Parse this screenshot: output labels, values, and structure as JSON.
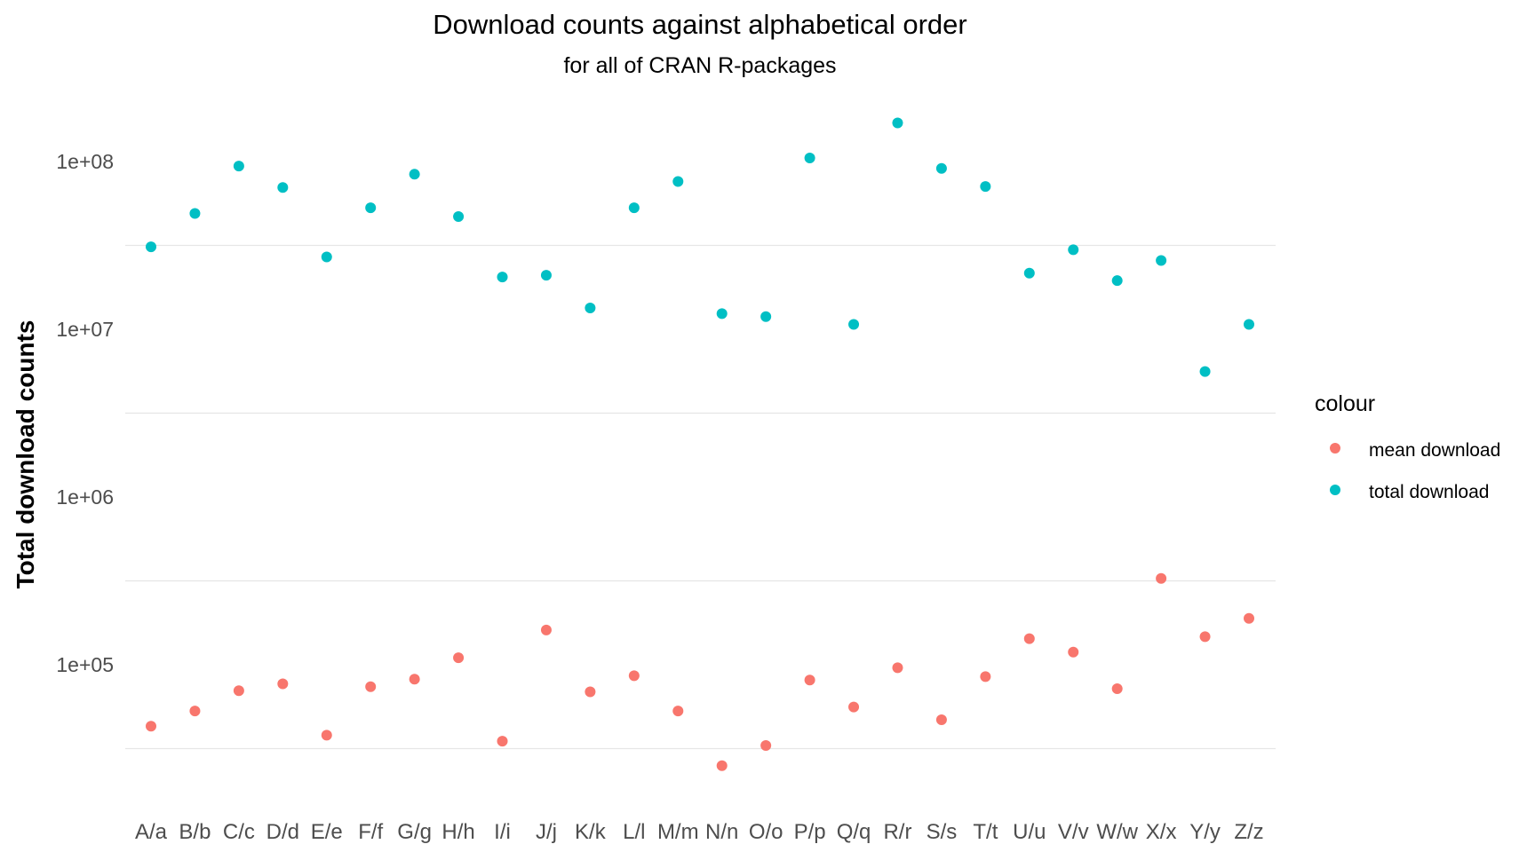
{
  "chart_data": {
    "type": "scatter",
    "title": "Download counts against alphabetical order",
    "subtitle": "for all of CRAN R-packages",
    "xlabel": "",
    "ylabel": "Total download counts",
    "y_scale": "log10",
    "ylim": [
      19000,
      215000000
    ],
    "y_ticks": [
      100000,
      1000000,
      10000000,
      100000000
    ],
    "y_tick_labels": [
      "1e+05",
      "1e+06",
      "1e+07",
      "1e+08"
    ],
    "grid": "horizontal, half-decade lines",
    "legend": {
      "title": "colour",
      "placement": "right"
    },
    "categories": [
      "A/a",
      "B/b",
      "C/c",
      "D/d",
      "E/e",
      "F/f",
      "G/g",
      "H/h",
      "I/i",
      "J/j",
      "K/k",
      "L/l",
      "M/m",
      "N/n",
      "O/o",
      "P/p",
      "Q/q",
      "R/r",
      "S/s",
      "T/t",
      "U/u",
      "V/v",
      "W/w",
      "X/x",
      "Y/y",
      "Z/z"
    ],
    "series": [
      {
        "name": "mean download",
        "color": "#F8766D",
        "values": [
          43000,
          53000,
          70000,
          77000,
          38000,
          74000,
          82000,
          110000,
          35000,
          161000,
          69000,
          86000,
          53000,
          25000,
          33000,
          81000,
          56000,
          96000,
          47000,
          85000,
          143000,
          119000,
          72000,
          327000,
          147000,
          189000
        ]
      },
      {
        "name": "total download",
        "color": "#00BFC4",
        "values": [
          31000000,
          49000000,
          94000000,
          70000000,
          27000000,
          53000000,
          84000000,
          47000000,
          20500000,
          21000000,
          13400000,
          53000000,
          76000000,
          12400000,
          11900000,
          105000000,
          10700000,
          170000000,
          91000000,
          71000000,
          21600000,
          29800000,
          19500000,
          25700000,
          5600000,
          10700000
        ]
      }
    ]
  }
}
